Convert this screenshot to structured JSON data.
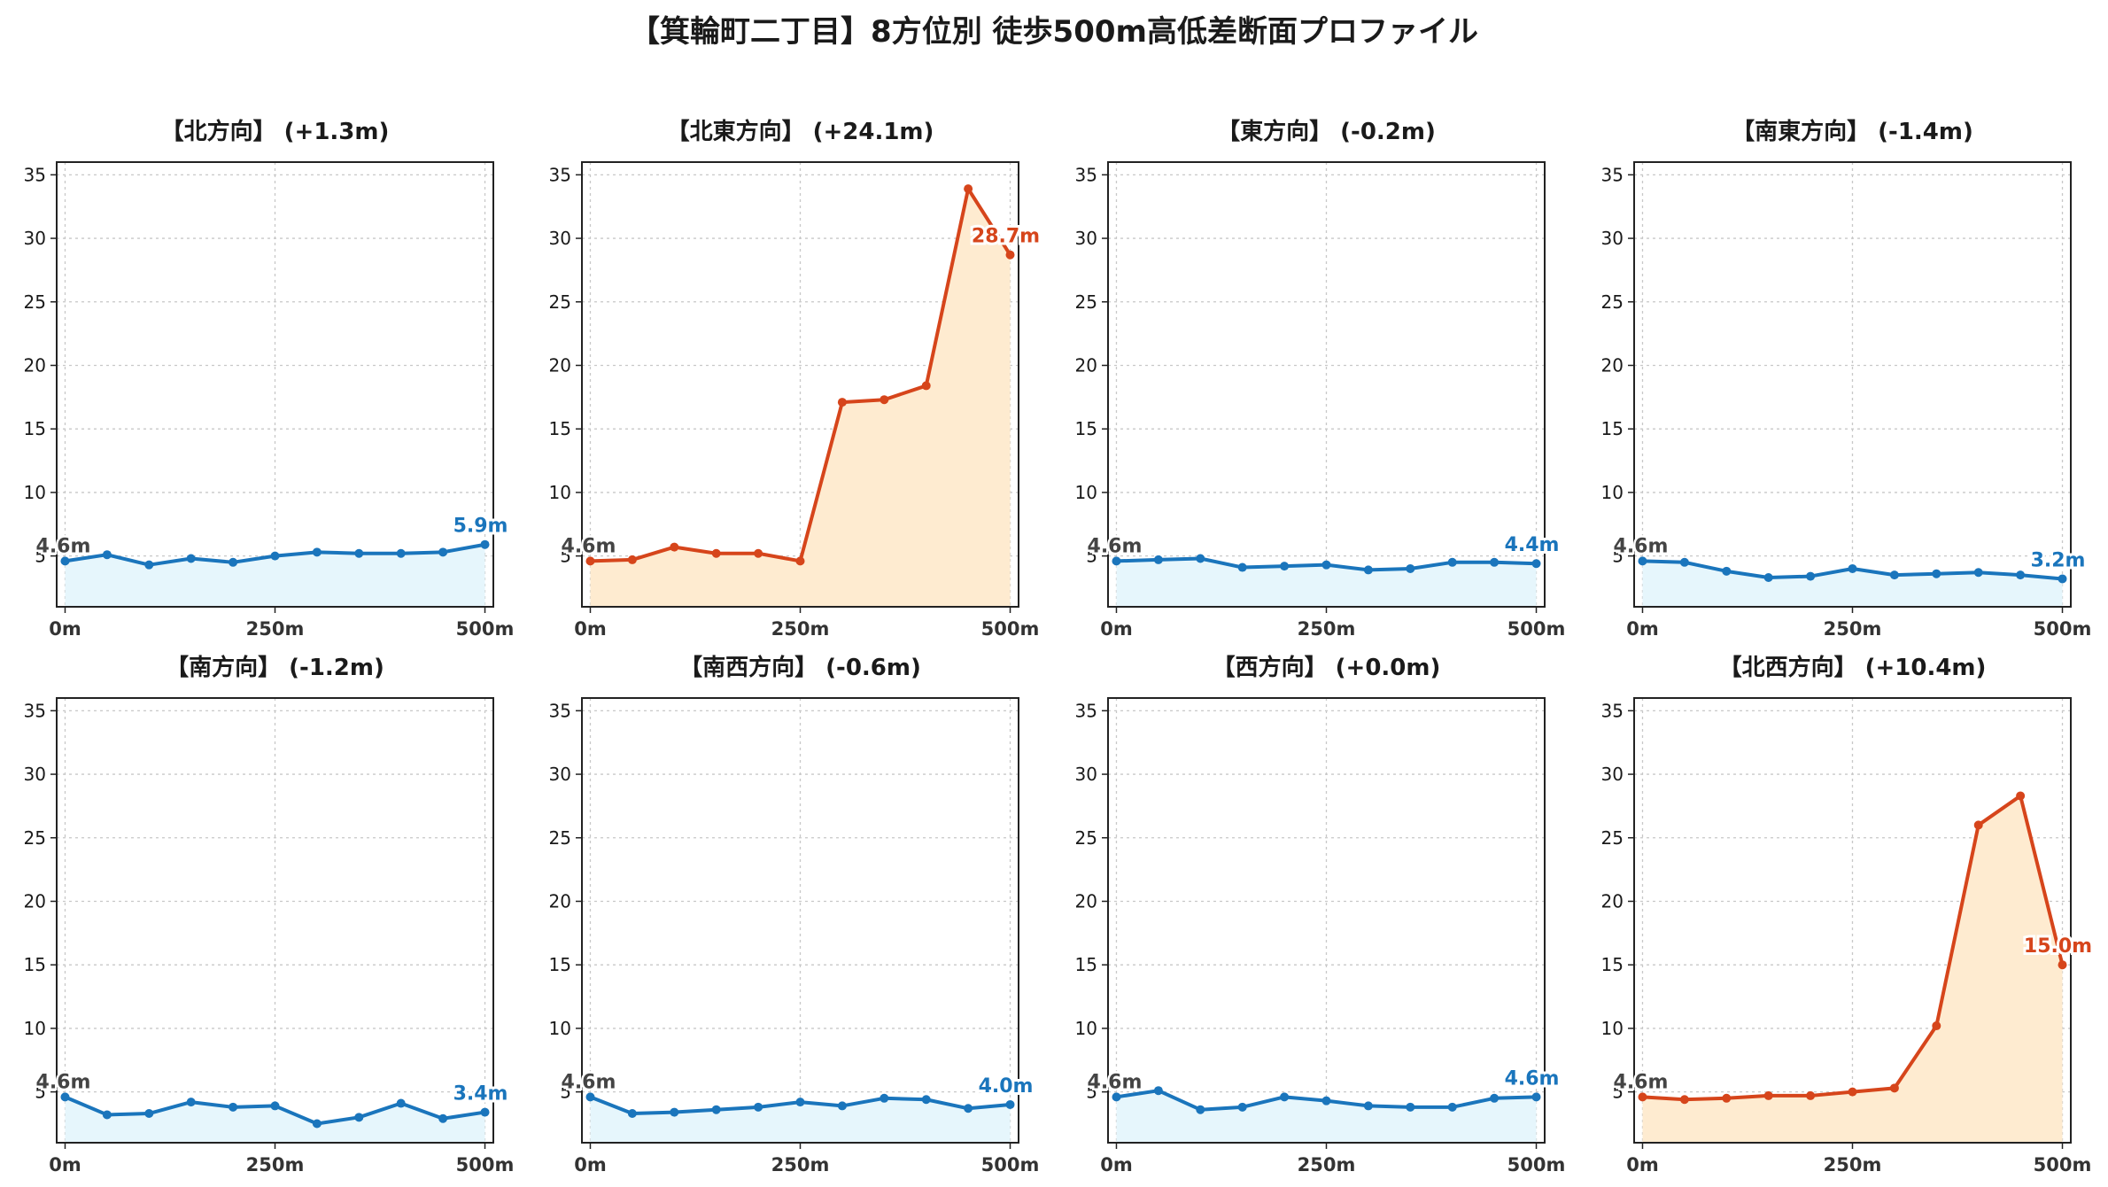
{
  "title": "【箕輪町二丁目】8方位別 徒歩500m高低差断面プロファイル",
  "colors": {
    "flat_line": "#1a75bc",
    "flat_fill": "#e6f6fc",
    "steep_line": "#d6451b",
    "steep_fill": "#feebd0",
    "grid": "#c8c8c8",
    "axis": "#222222",
    "start_label": "#444444"
  },
  "chart_data": [
    {
      "type": "area",
      "title": "【北方向】 (+1.3m)",
      "x": [
        0,
        50,
        100,
        150,
        200,
        250,
        300,
        350,
        400,
        450,
        500
      ],
      "values": [
        4.6,
        5.1,
        4.3,
        4.8,
        4.5,
        5.0,
        5.3,
        5.2,
        5.2,
        5.3,
        5.9
      ],
      "xticks": [
        "0m",
        "250m",
        "500m"
      ],
      "yticks": [
        5,
        10,
        15,
        20,
        25,
        30,
        35
      ],
      "ylim": [
        1,
        36
      ],
      "xlim": [
        -10,
        510
      ],
      "start_label": "4.6m",
      "end_label": "5.9m",
      "style": "flat",
      "grid": true
    },
    {
      "type": "area",
      "title": "【北東方向】 (+24.1m)",
      "x": [
        0,
        50,
        100,
        150,
        200,
        250,
        300,
        350,
        400,
        450,
        500
      ],
      "values": [
        4.6,
        4.7,
        5.7,
        5.2,
        5.2,
        4.6,
        17.1,
        17.3,
        18.4,
        33.9,
        28.7
      ],
      "xticks": [
        "0m",
        "250m",
        "500m"
      ],
      "yticks": [
        5,
        10,
        15,
        20,
        25,
        30,
        35
      ],
      "ylim": [
        1,
        36
      ],
      "xlim": [
        -10,
        510
      ],
      "start_label": "4.6m",
      "end_label": "28.7m",
      "style": "steep",
      "grid": true
    },
    {
      "type": "area",
      "title": "【東方向】 (-0.2m)",
      "x": [
        0,
        50,
        100,
        150,
        200,
        250,
        300,
        350,
        400,
        450,
        500
      ],
      "values": [
        4.6,
        4.7,
        4.8,
        4.1,
        4.2,
        4.3,
        3.9,
        4.0,
        4.5,
        4.5,
        4.4
      ],
      "xticks": [
        "0m",
        "250m",
        "500m"
      ],
      "yticks": [
        5,
        10,
        15,
        20,
        25,
        30,
        35
      ],
      "ylim": [
        1,
        36
      ],
      "xlim": [
        -10,
        510
      ],
      "start_label": "4.6m",
      "end_label": "4.4m",
      "style": "flat",
      "grid": true
    },
    {
      "type": "area",
      "title": "【南東方向】 (-1.4m)",
      "x": [
        0,
        50,
        100,
        150,
        200,
        250,
        300,
        350,
        400,
        450,
        500
      ],
      "values": [
        4.6,
        4.5,
        3.8,
        3.3,
        3.4,
        4.0,
        3.5,
        3.6,
        3.7,
        3.5,
        3.2
      ],
      "xticks": [
        "0m",
        "250m",
        "500m"
      ],
      "yticks": [
        5,
        10,
        15,
        20,
        25,
        30,
        35
      ],
      "ylim": [
        1,
        36
      ],
      "xlim": [
        -10,
        510
      ],
      "start_label": "4.6m",
      "end_label": "3.2m",
      "style": "flat",
      "grid": true
    },
    {
      "type": "area",
      "title": "【南方向】 (-1.2m)",
      "x": [
        0,
        50,
        100,
        150,
        200,
        250,
        300,
        350,
        400,
        450,
        500
      ],
      "values": [
        4.6,
        3.2,
        3.3,
        4.2,
        3.8,
        3.9,
        2.5,
        3.0,
        4.1,
        2.9,
        3.4
      ],
      "xticks": [
        "0m",
        "250m",
        "500m"
      ],
      "yticks": [
        5,
        10,
        15,
        20,
        25,
        30,
        35
      ],
      "ylim": [
        1,
        36
      ],
      "xlim": [
        -10,
        510
      ],
      "start_label": "4.6m",
      "end_label": "3.4m",
      "style": "flat",
      "grid": true
    },
    {
      "type": "area",
      "title": "【南西方向】 (-0.6m)",
      "x": [
        0,
        50,
        100,
        150,
        200,
        250,
        300,
        350,
        400,
        450,
        500
      ],
      "values": [
        4.6,
        3.3,
        3.4,
        3.6,
        3.8,
        4.2,
        3.9,
        4.5,
        4.4,
        3.7,
        4.0
      ],
      "xticks": [
        "0m",
        "250m",
        "500m"
      ],
      "yticks": [
        5,
        10,
        15,
        20,
        25,
        30,
        35
      ],
      "ylim": [
        1,
        36
      ],
      "xlim": [
        -10,
        510
      ],
      "start_label": "4.6m",
      "end_label": "4.0m",
      "style": "flat",
      "grid": true
    },
    {
      "type": "area",
      "title": "【西方向】 (+0.0m)",
      "x": [
        0,
        50,
        100,
        150,
        200,
        250,
        300,
        350,
        400,
        450,
        500
      ],
      "values": [
        4.6,
        5.1,
        3.6,
        3.8,
        4.6,
        4.3,
        3.9,
        3.8,
        3.8,
        4.5,
        4.6
      ],
      "xticks": [
        "0m",
        "250m",
        "500m"
      ],
      "yticks": [
        5,
        10,
        15,
        20,
        25,
        30,
        35
      ],
      "ylim": [
        1,
        36
      ],
      "xlim": [
        -10,
        510
      ],
      "start_label": "4.6m",
      "end_label": "4.6m",
      "style": "flat",
      "grid": true
    },
    {
      "type": "area",
      "title": "【北西方向】 (+10.4m)",
      "x": [
        0,
        50,
        100,
        150,
        200,
        250,
        300,
        350,
        400,
        450,
        500
      ],
      "values": [
        4.6,
        4.4,
        4.5,
        4.7,
        4.7,
        5.0,
        5.3,
        10.2,
        26.0,
        28.3,
        15.0
      ],
      "xticks": [
        "0m",
        "250m",
        "500m"
      ],
      "yticks": [
        5,
        10,
        15,
        20,
        25,
        30,
        35
      ],
      "ylim": [
        1,
        36
      ],
      "xlim": [
        -10,
        510
      ],
      "start_label": "4.6m",
      "end_label": "15.0m",
      "style": "steep",
      "grid": true
    }
  ]
}
